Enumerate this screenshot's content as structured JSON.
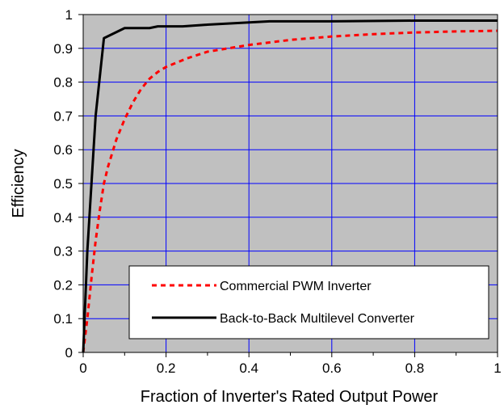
{
  "chart_data": {
    "type": "line",
    "title": "",
    "xlabel": "Fraction of Inverter's Rated Output Power",
    "ylabel": "Efficiency",
    "xlim": [
      0,
      1
    ],
    "ylim": [
      0,
      1
    ],
    "x_ticks": [
      "0",
      "0.2",
      "0.4",
      "0.6",
      "0.8",
      "1"
    ],
    "y_ticks": [
      "0",
      "0.1",
      "0.2",
      "0.3",
      "0.4",
      "0.5",
      "0.6",
      "0.7",
      "0.8",
      "0.9",
      "1"
    ],
    "grid": true,
    "legend_position": "bottom-right",
    "plot_background": "#c0c0c0",
    "grid_color": "#0000ff",
    "series": [
      {
        "name": "Commercial PWM Inverter",
        "color": "#ff0000",
        "style": "dashed",
        "x": [
          0,
          0.01,
          0.02,
          0.03,
          0.04,
          0.05,
          0.06,
          0.08,
          0.1,
          0.12,
          0.14,
          0.16,
          0.18,
          0.2,
          0.25,
          0.3,
          0.35,
          0.4,
          0.5,
          0.6,
          0.7,
          0.8,
          0.9,
          1.0
        ],
        "y": [
          0,
          0.1,
          0.22,
          0.33,
          0.42,
          0.5,
          0.55,
          0.63,
          0.69,
          0.74,
          0.78,
          0.81,
          0.83,
          0.845,
          0.87,
          0.89,
          0.9,
          0.91,
          0.925,
          0.935,
          0.942,
          0.947,
          0.95,
          0.952
        ]
      },
      {
        "name": "Back-to-Back Multilevel Converter",
        "color": "#000000",
        "style": "solid",
        "x": [
          0,
          0.01,
          0.02,
          0.03,
          0.05,
          0.1,
          0.16,
          0.18,
          0.24,
          0.3,
          0.45,
          0.6,
          0.8,
          1.0
        ],
        "y": [
          0,
          0.3,
          0.5,
          0.7,
          0.93,
          0.96,
          0.96,
          0.965,
          0.965,
          0.97,
          0.98,
          0.98,
          0.982,
          0.982
        ]
      }
    ]
  }
}
